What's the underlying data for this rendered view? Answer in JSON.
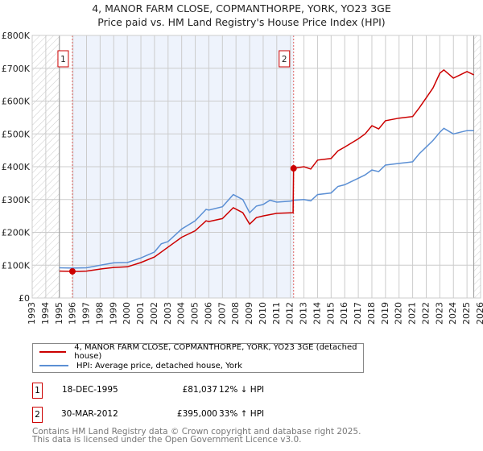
{
  "title": "4, MANOR FARM CLOSE, COPMANTHORPE, YORK, YO23 3GE",
  "subtitle": "Price paid vs. HM Land Registry's House Price Index (HPI)",
  "colors": {
    "price": "#cc0000",
    "hpi": "#5b8fd4",
    "shade": "#eef3fc"
  },
  "chart_data": {
    "type": "line",
    "title": "4, MANOR FARM CLOSE, COPMANTHORPE, YORK, YO23 3GE",
    "subtitle": "Price paid vs. HM Land Registry's House Price Index (HPI)",
    "xlim": [
      1993,
      2026
    ],
    "ylim": [
      0,
      800000
    ],
    "x_ticks": [
      "1993",
      "1994",
      "1995",
      "1996",
      "1997",
      "1998",
      "1999",
      "2000",
      "2001",
      "2002",
      "2003",
      "2004",
      "2005",
      "2006",
      "2007",
      "2008",
      "2009",
      "2010",
      "2011",
      "2012",
      "2013",
      "2014",
      "2015",
      "2016",
      "2017",
      "2018",
      "2019",
      "2020",
      "2021",
      "2022",
      "2023",
      "2024",
      "2025",
      "2026"
    ],
    "y_ticks": [
      {
        "v": 0,
        "label": "£0"
      },
      {
        "v": 100000,
        "label": "£100K"
      },
      {
        "v": 200000,
        "label": "£200K"
      },
      {
        "v": 300000,
        "label": "£300K"
      },
      {
        "v": 400000,
        "label": "£400K"
      },
      {
        "v": 500000,
        "label": "£500K"
      },
      {
        "v": 600000,
        "label": "£600K"
      },
      {
        "v": 700000,
        "label": "£700K"
      },
      {
        "v": 800000,
        "label": "£800K"
      }
    ],
    "grid": true,
    "series": [
      {
        "name": "4, MANOR FARM CLOSE, COPMANTHORPE, YORK, YO23 3GE (detached house)",
        "color": "#cc0000",
        "x": [
          1995,
          1996,
          1996.5,
          1997,
          1998,
          1999,
          2000,
          2001,
          2002,
          2003,
          2004,
          2005,
          2005.8,
          2006,
          2007,
          2007.8,
          2008.5,
          2009,
          2009.5,
          2010,
          2011,
          2012.2,
          2012.24,
          2013,
          2013.5,
          2014,
          2015,
          2015.5,
          2016,
          2017,
          2017.5,
          2018,
          2018.5,
          2019,
          2020,
          2021,
          2021.5,
          2022,
          2022.5,
          2023,
          2023.3,
          2024,
          2024.5,
          2025,
          2025.5
        ],
        "y": [
          82000,
          81000,
          81000,
          82000,
          88000,
          93000,
          95000,
          108000,
          125000,
          155000,
          185000,
          205000,
          235000,
          233000,
          242000,
          275000,
          260000,
          225000,
          245000,
          250000,
          258000,
          260000,
          395000,
          400000,
          393000,
          420000,
          425000,
          448000,
          460000,
          485000,
          500000,
          525000,
          515000,
          540000,
          548000,
          553000,
          580000,
          610000,
          640000,
          685000,
          695000,
          670000,
          680000,
          690000,
          680000
        ]
      },
      {
        "name": "HPI: Average price, detached house, York",
        "color": "#5b8fd4",
        "x": [
          1995,
          1996,
          1997,
          1998,
          1999,
          2000,
          2001,
          2002,
          2002.5,
          2003,
          2004,
          2005,
          2005.8,
          2006,
          2007,
          2007.8,
          2008.5,
          2009,
          2009.5,
          2010,
          2010.5,
          2011,
          2012,
          2012.25,
          2013,
          2013.5,
          2014,
          2015,
          2015.5,
          2016,
          2017,
          2017.5,
          2018,
          2018.5,
          2019,
          2020,
          2021,
          2021.5,
          2022,
          2022.5,
          2023,
          2023.3,
          2024,
          2024.5,
          2025,
          2025.5
        ],
        "y": [
          92000,
          91000,
          92000,
          100000,
          107000,
          108000,
          122000,
          140000,
          165000,
          172000,
          210000,
          235000,
          270000,
          268000,
          278000,
          315000,
          300000,
          260000,
          280000,
          285000,
          298000,
          292000,
          295000,
          298000,
          300000,
          296000,
          315000,
          320000,
          340000,
          345000,
          365000,
          375000,
          390000,
          385000,
          405000,
          410000,
          415000,
          440000,
          460000,
          480000,
          505000,
          517000,
          500000,
          505000,
          510000,
          510000
        ]
      }
    ],
    "annotations": [
      {
        "label": "1",
        "x": 1995.96,
        "y": 81037
      },
      {
        "label": "2",
        "x": 2012.24,
        "y": 395000
      }
    ],
    "shaded_range": [
      1995.96,
      2012.24
    ],
    "hatched_ranges": [
      [
        1993,
        1995
      ],
      [
        2025.5,
        2026
      ]
    ]
  },
  "legend": {
    "price_label": "4, MANOR FARM CLOSE, COPMANTHORPE, YORK, YO23 3GE (detached house)",
    "hpi_label": "HPI: Average price, detached house, York"
  },
  "transactions": [
    {
      "num": "1",
      "date": "18-DEC-1995",
      "price": "£81,037",
      "hpi": "12% ↓ HPI"
    },
    {
      "num": "2",
      "date": "30-MAR-2012",
      "price": "£395,000",
      "hpi": "33% ↑ HPI"
    }
  ],
  "footer": {
    "line1": "Contains HM Land Registry data © Crown copyright and database right 2025.",
    "line2": "This data is licensed under the Open Government Licence v3.0."
  }
}
